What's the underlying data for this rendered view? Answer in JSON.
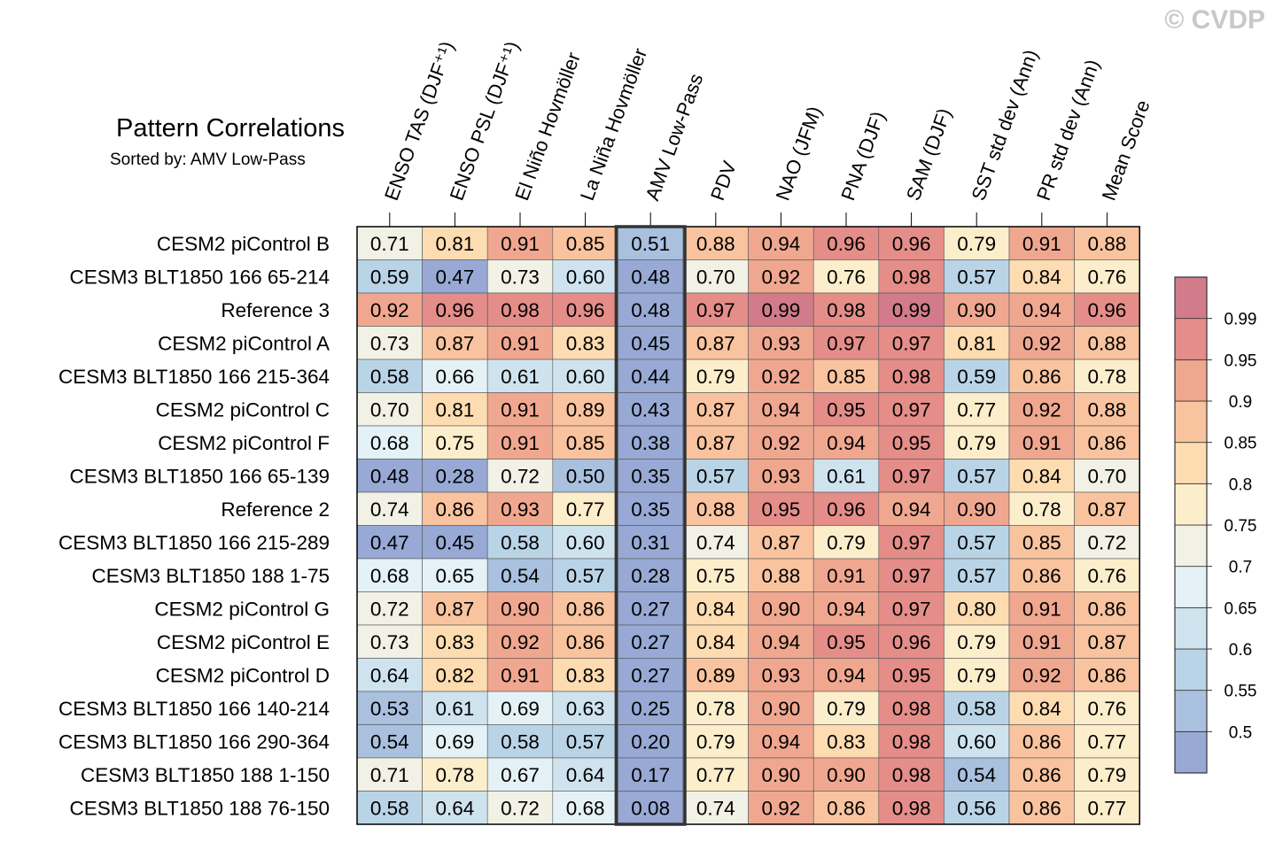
{
  "watermark": "© CVDP",
  "chart_data": {
    "type": "heatmap",
    "title": "Pattern Correlations",
    "subtitle": "Sorted by: AMV Low-Pass",
    "columns": [
      "ENSO TAS (DJF⁺¹)",
      "ENSO PSL (DJF⁺¹)",
      "El Niño Hovmöller",
      "La Niña Hovmöller",
      "AMV Low-Pass",
      "PDV",
      "NAO (JFM)",
      "PNA (DJF)",
      "SAM (DJF)",
      "SST std dev (Ann)",
      "PR std dev (Ann)",
      "Mean Score"
    ],
    "sorted_column_index": 4,
    "rows": [
      {
        "label": "CESM2 piControl B",
        "values": [
          "0.71",
          "0.81",
          "0.91",
          "0.85",
          "0.51",
          "0.88",
          "0.94",
          "0.96",
          "0.96",
          "0.79",
          "0.91",
          "0.88"
        ]
      },
      {
        "label": "CESM3 BLT1850 166 65-214",
        "values": [
          "0.59",
          "0.47",
          "0.73",
          "0.60",
          "0.48",
          "0.70",
          "0.92",
          "0.76",
          "0.98",
          "0.57",
          "0.84",
          "0.76"
        ]
      },
      {
        "label": "Reference 3",
        "values": [
          "0.92",
          "0.96",
          "0.98",
          "0.96",
          "0.48",
          "0.97",
          "0.99",
          "0.98",
          "0.99",
          "0.90",
          "0.94",
          "0.96"
        ]
      },
      {
        "label": "CESM2 piControl A",
        "values": [
          "0.73",
          "0.87",
          "0.91",
          "0.83",
          "0.45",
          "0.87",
          "0.93",
          "0.97",
          "0.97",
          "0.81",
          "0.92",
          "0.88"
        ]
      },
      {
        "label": "CESM3 BLT1850 166 215-364",
        "values": [
          "0.58",
          "0.66",
          "0.61",
          "0.60",
          "0.44",
          "0.79",
          "0.92",
          "0.85",
          "0.98",
          "0.59",
          "0.86",
          "0.78"
        ]
      },
      {
        "label": "CESM2 piControl C",
        "values": [
          "0.70",
          "0.81",
          "0.91",
          "0.89",
          "0.43",
          "0.87",
          "0.94",
          "0.95",
          "0.97",
          "0.77",
          "0.92",
          "0.88"
        ]
      },
      {
        "label": "CESM2 piControl F",
        "values": [
          "0.68",
          "0.75",
          "0.91",
          "0.85",
          "0.38",
          "0.87",
          "0.92",
          "0.94",
          "0.95",
          "0.79",
          "0.91",
          "0.86"
        ]
      },
      {
        "label": "CESM3 BLT1850 166 65-139",
        "values": [
          "0.48",
          "0.28",
          "0.72",
          "0.50",
          "0.35",
          "0.57",
          "0.93",
          "0.61",
          "0.97",
          "0.57",
          "0.84",
          "0.70"
        ]
      },
      {
        "label": "Reference 2",
        "values": [
          "0.74",
          "0.86",
          "0.93",
          "0.77",
          "0.35",
          "0.88",
          "0.95",
          "0.96",
          "0.94",
          "0.90",
          "0.78",
          "0.87"
        ]
      },
      {
        "label": "CESM3 BLT1850 166 215-289",
        "values": [
          "0.47",
          "0.45",
          "0.58",
          "0.60",
          "0.31",
          "0.74",
          "0.87",
          "0.79",
          "0.97",
          "0.57",
          "0.85",
          "0.72"
        ]
      },
      {
        "label": "CESM3 BLT1850 188 1-75",
        "values": [
          "0.68",
          "0.65",
          "0.54",
          "0.57",
          "0.28",
          "0.75",
          "0.88",
          "0.91",
          "0.97",
          "0.57",
          "0.86",
          "0.76"
        ]
      },
      {
        "label": "CESM2 piControl G",
        "values": [
          "0.72",
          "0.87",
          "0.90",
          "0.86",
          "0.27",
          "0.84",
          "0.90",
          "0.94",
          "0.97",
          "0.80",
          "0.91",
          "0.86"
        ]
      },
      {
        "label": "CESM2 piControl E",
        "values": [
          "0.73",
          "0.83",
          "0.92",
          "0.86",
          "0.27",
          "0.84",
          "0.94",
          "0.95",
          "0.96",
          "0.79",
          "0.91",
          "0.87"
        ]
      },
      {
        "label": "CESM2 piControl D",
        "values": [
          "0.64",
          "0.82",
          "0.91",
          "0.83",
          "0.27",
          "0.89",
          "0.93",
          "0.94",
          "0.95",
          "0.79",
          "0.92",
          "0.86"
        ]
      },
      {
        "label": "CESM3 BLT1850 166 140-214",
        "values": [
          "0.53",
          "0.61",
          "0.69",
          "0.63",
          "0.25",
          "0.78",
          "0.90",
          "0.79",
          "0.98",
          "0.58",
          "0.84",
          "0.76"
        ]
      },
      {
        "label": "CESM3 BLT1850 166 290-364",
        "values": [
          "0.54",
          "0.69",
          "0.58",
          "0.57",
          "0.20",
          "0.79",
          "0.94",
          "0.83",
          "0.98",
          "0.60",
          "0.86",
          "0.77"
        ]
      },
      {
        "label": "CESM3 BLT1850 188 1-150",
        "values": [
          "0.71",
          "0.78",
          "0.67",
          "0.64",
          "0.17",
          "0.77",
          "0.90",
          "0.90",
          "0.98",
          "0.54",
          "0.86",
          "0.79"
        ]
      },
      {
        "label": "CESM3 BLT1850 188 76-150",
        "values": [
          "0.58",
          "0.64",
          "0.72",
          "0.68",
          "0.08",
          "0.74",
          "0.92",
          "0.86",
          "0.98",
          "0.56",
          "0.86",
          "0.77"
        ]
      }
    ],
    "colorbar": {
      "boundaries": [
        0.5,
        0.55,
        0.6,
        0.65,
        0.7,
        0.75,
        0.8,
        0.85,
        0.9,
        0.95,
        0.99
      ],
      "tick_labels": [
        "0.5",
        "0.55",
        "0.6",
        "0.65",
        "0.7",
        "0.75",
        "0.8",
        "0.85",
        "0.9",
        "0.95",
        "0.99"
      ],
      "colors": [
        "#97a9d4",
        "#a9c0de",
        "#bad4e7",
        "#cfe3ef",
        "#e4f1f6",
        "#f2f1e6",
        "#fdeecb",
        "#fcdcb0",
        "#f8c39e",
        "#f0a790",
        "#e48d89",
        "#d27b8a"
      ]
    }
  }
}
